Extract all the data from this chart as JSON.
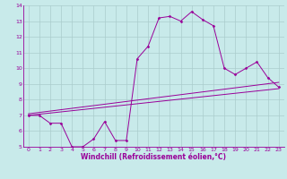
{
  "title": "",
  "xlabel": "Windchill (Refroidissement éolien,°C)",
  "ylabel": "",
  "bg_color": "#c8eaea",
  "line_color": "#990099",
  "grid_color": "#aacccc",
  "xlim": [
    -0.5,
    23.5
  ],
  "ylim": [
    5,
    14
  ],
  "xticks": [
    0,
    1,
    2,
    3,
    4,
    5,
    6,
    7,
    8,
    9,
    10,
    11,
    12,
    13,
    14,
    15,
    16,
    17,
    18,
    19,
    20,
    21,
    22,
    23
  ],
  "yticks": [
    5,
    6,
    7,
    8,
    9,
    10,
    11,
    12,
    13,
    14
  ],
  "main_x": [
    0,
    1,
    2,
    3,
    4,
    5,
    6,
    7,
    8,
    9,
    10,
    11,
    12,
    13,
    14,
    15,
    16,
    17,
    18,
    19,
    20,
    21,
    22,
    23
  ],
  "main_y": [
    7.0,
    7.0,
    6.5,
    6.5,
    5.0,
    5.0,
    5.5,
    6.6,
    5.4,
    5.4,
    10.6,
    11.4,
    13.2,
    13.3,
    13.0,
    13.6,
    13.1,
    12.7,
    10.0,
    9.6,
    10.0,
    10.4,
    9.4,
    8.8
  ],
  "line2_x": [
    0,
    23
  ],
  "line2_y": [
    7.0,
    8.7
  ],
  "line3_x": [
    0,
    23
  ],
  "line3_y": [
    7.1,
    9.1
  ],
  "tick_fontsize": 4.5,
  "xlabel_fontsize": 5.5
}
